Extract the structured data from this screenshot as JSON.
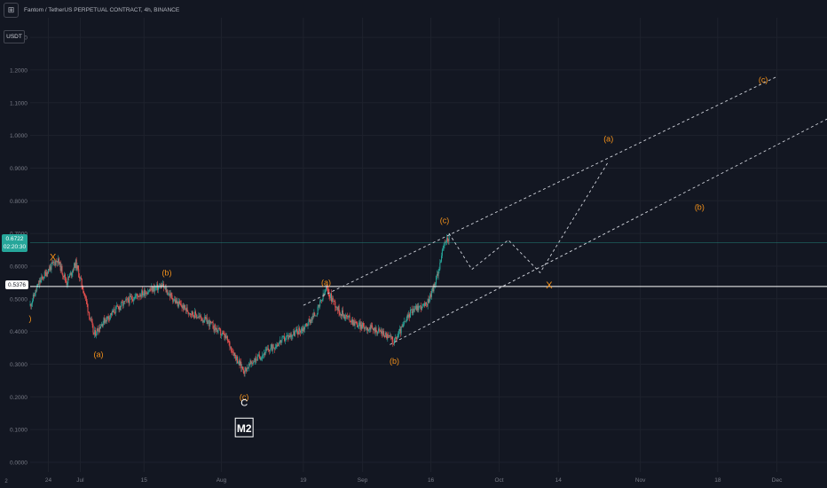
{
  "header": {
    "title": "Fantom / TetherUS PERPETUAL CONTRACT, 4h, BINANCE",
    "logo_icon": "tradingview-logo-icon",
    "logo_text": "⊞"
  },
  "currency_button": {
    "label": "USDT"
  },
  "last_price_tag": {
    "price": "0.6722",
    "countdown": "02:20:30",
    "color": "#26a69a"
  },
  "hline_tag": {
    "price": "0.5376",
    "color": "#ffffff"
  },
  "corner_button": {
    "label": "2"
  },
  "colors": {
    "background": "#131722",
    "up": "#26a69a",
    "down": "#ef5350",
    "wave_label": "#f7931a",
    "grid": "#1e222d",
    "axis_text": "#787b86",
    "hline": "#ffffff",
    "projection": "#d1d4dc"
  },
  "chart_data": {
    "type": "candlestick",
    "symbol": "Fantom / TetherUS PERPETUAL CONTRACT",
    "interval": "4h",
    "exchange": "BINANCE",
    "y_axis": {
      "position": "left",
      "ticks": [
        0.0,
        0.1,
        0.2,
        0.3,
        0.4,
        0.5,
        0.6,
        0.7,
        0.8,
        0.9,
        1.0,
        1.1,
        1.2,
        1.3
      ],
      "tick_labels": [
        "0.0000",
        "0.1000",
        "0.2000",
        "0.3000",
        "0.4000",
        "0.5000",
        "0.6000",
        "0.7000",
        "0.8000",
        "0.9000",
        "1.0000",
        "1.1000",
        "1.2000",
        "1.3000"
      ],
      "ylim": [
        -0.03,
        1.36
      ]
    },
    "x_axis": {
      "ticks": [
        {
          "x": "2022-06-24",
          "label": "24"
        },
        {
          "x": "2022-07-01",
          "label": "Jul"
        },
        {
          "x": "2022-07-15",
          "label": "15"
        },
        {
          "x": "2022-08-01",
          "label": "Aug"
        },
        {
          "x": "2022-08-19",
          "label": "19"
        },
        {
          "x": "2022-09-01",
          "label": "Sep"
        },
        {
          "x": "2022-09-16",
          "label": "16"
        },
        {
          "x": "2022-10-01",
          "label": "Oct"
        },
        {
          "x": "2022-10-14",
          "label": "14"
        },
        {
          "x": "2022-11-01",
          "label": "Nov"
        },
        {
          "x": "2022-11-18",
          "label": "18"
        },
        {
          "x": "2022-12-01",
          "label": "Dec"
        }
      ],
      "xlim": [
        "2022-06-20",
        "2022-12-12"
      ]
    },
    "grid": true,
    "price_path": [
      {
        "x": "2022-06-20",
        "y": 0.48
      },
      {
        "x": "2022-06-22",
        "y": 0.55
      },
      {
        "x": "2022-06-24",
        "y": 0.59
      },
      {
        "x": "2022-06-26",
        "y": 0.62
      },
      {
        "x": "2022-06-28",
        "y": 0.55
      },
      {
        "x": "2022-06-30",
        "y": 0.61
      },
      {
        "x": "2022-07-02",
        "y": 0.51
      },
      {
        "x": "2022-07-04",
        "y": 0.39
      },
      {
        "x": "2022-07-06",
        "y": 0.43
      },
      {
        "x": "2022-07-09",
        "y": 0.47
      },
      {
        "x": "2022-07-12",
        "y": 0.5
      },
      {
        "x": "2022-07-15",
        "y": 0.52
      },
      {
        "x": "2022-07-19",
        "y": 0.54
      },
      {
        "x": "2022-07-22",
        "y": 0.49
      },
      {
        "x": "2022-07-25",
        "y": 0.46
      },
      {
        "x": "2022-07-29",
        "y": 0.43
      },
      {
        "x": "2022-08-02",
        "y": 0.38
      },
      {
        "x": "2022-08-05",
        "y": 0.3
      },
      {
        "x": "2022-08-06",
        "y": 0.28
      },
      {
        "x": "2022-08-08",
        "y": 0.31
      },
      {
        "x": "2022-08-11",
        "y": 0.34
      },
      {
        "x": "2022-08-15",
        "y": 0.38
      },
      {
        "x": "2022-08-19",
        "y": 0.41
      },
      {
        "x": "2022-08-22",
        "y": 0.46
      },
      {
        "x": "2022-08-24",
        "y": 0.53
      },
      {
        "x": "2022-08-27",
        "y": 0.46
      },
      {
        "x": "2022-08-31",
        "y": 0.42
      },
      {
        "x": "2022-09-05",
        "y": 0.4
      },
      {
        "x": "2022-09-08",
        "y": 0.37
      },
      {
        "x": "2022-09-10",
        "y": 0.42
      },
      {
        "x": "2022-09-12",
        "y": 0.47
      },
      {
        "x": "2022-09-15",
        "y": 0.48
      },
      {
        "x": "2022-09-17",
        "y": 0.55
      },
      {
        "x": "2022-09-19",
        "y": 0.67
      },
      {
        "x": "2022-09-20",
        "y": 0.69
      }
    ],
    "horizontal_line": {
      "y": 0.5376
    },
    "projection_path": [
      {
        "x": "2022-09-20",
        "y": 0.7
      },
      {
        "x": "2022-09-25",
        "y": 0.59
      },
      {
        "x": "2022-10-03",
        "y": 0.68
      },
      {
        "x": "2022-10-10",
        "y": 0.58
      },
      {
        "x": "2022-10-25",
        "y": 0.92
      }
    ],
    "channels": [
      {
        "from": {
          "x": "2022-08-19",
          "y": 0.48
        },
        "to": {
          "x": "2022-12-01",
          "y": 1.18
        }
      },
      {
        "from": {
          "x": "2022-09-07",
          "y": 0.36
        },
        "to": {
          "x": "2022-12-12",
          "y": 1.05
        }
      }
    ],
    "annotations": [
      {
        "text": "X",
        "x": "2022-06-25",
        "y": 0.625,
        "color": "#f7931a"
      },
      {
        "text": ")",
        "x": "2022-06-20",
        "y": 0.44,
        "color": "#f7931a"
      },
      {
        "text": "(a)",
        "x": "2022-07-05",
        "y": 0.33,
        "color": "#f7931a"
      },
      {
        "text": "(b)",
        "x": "2022-07-20",
        "y": 0.58,
        "color": "#f7931a"
      },
      {
        "text": "(c)",
        "x": "2022-08-06",
        "y": 0.2,
        "color": "#f7931a"
      },
      {
        "text": "C",
        "x": "2022-08-06",
        "y": 0.18,
        "color": "#ffffff"
      },
      {
        "text": "M2",
        "x": "2022-08-06",
        "y": 0.105,
        "color": "#ffffff",
        "boxed": true
      },
      {
        "text": "(a)",
        "x": "2022-08-24",
        "y": 0.55,
        "color": "#f7931a"
      },
      {
        "text": "(b)",
        "x": "2022-09-08",
        "y": 0.31,
        "color": "#f7931a"
      },
      {
        "text": "(c)",
        "x": "2022-09-19",
        "y": 0.74,
        "color": "#f7931a"
      },
      {
        "text": "X",
        "x": "2022-10-12",
        "y": 0.54,
        "color": "#f7931a"
      },
      {
        "text": "(a)",
        "x": "2022-10-25",
        "y": 0.99,
        "color": "#f7931a"
      },
      {
        "text": "(b)",
        "x": "2022-11-14",
        "y": 0.78,
        "color": "#f7931a"
      },
      {
        "text": "(c)",
        "x": "2022-11-28",
        "y": 1.17,
        "color": "#f7931a"
      }
    ]
  }
}
